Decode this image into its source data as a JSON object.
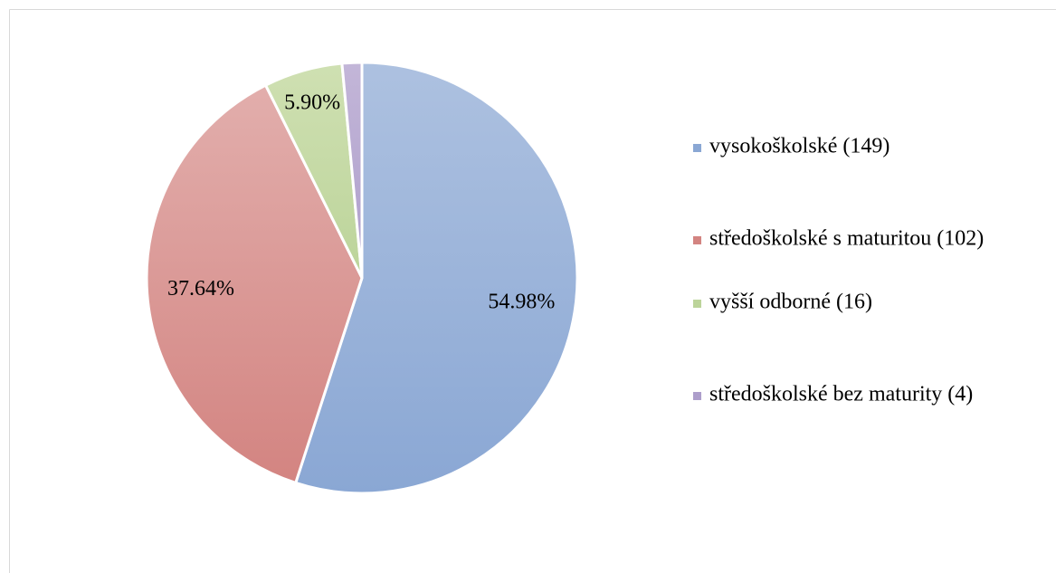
{
  "chart_data": {
    "type": "pie",
    "categories": [
      "vysokoškolské (149)",
      "středoškolské s maturitou (102)",
      "vyšší odborné (16)",
      "středoškolské bez maturity (4)"
    ],
    "values": [
      54.98,
      37.64,
      5.9,
      1.48
    ],
    "value_labels": [
      "54.98%",
      "37.64%",
      "5.90%",
      null
    ],
    "colors": [
      [
        "#adc1e0",
        "#8aa7d4"
      ],
      [
        "#e2aeac",
        "#d38481"
      ],
      [
        "#cfe0b2",
        "#bcd49a"
      ],
      [
        "#c3b6d8",
        "#ad9ecb"
      ]
    ],
    "legend": "right"
  }
}
